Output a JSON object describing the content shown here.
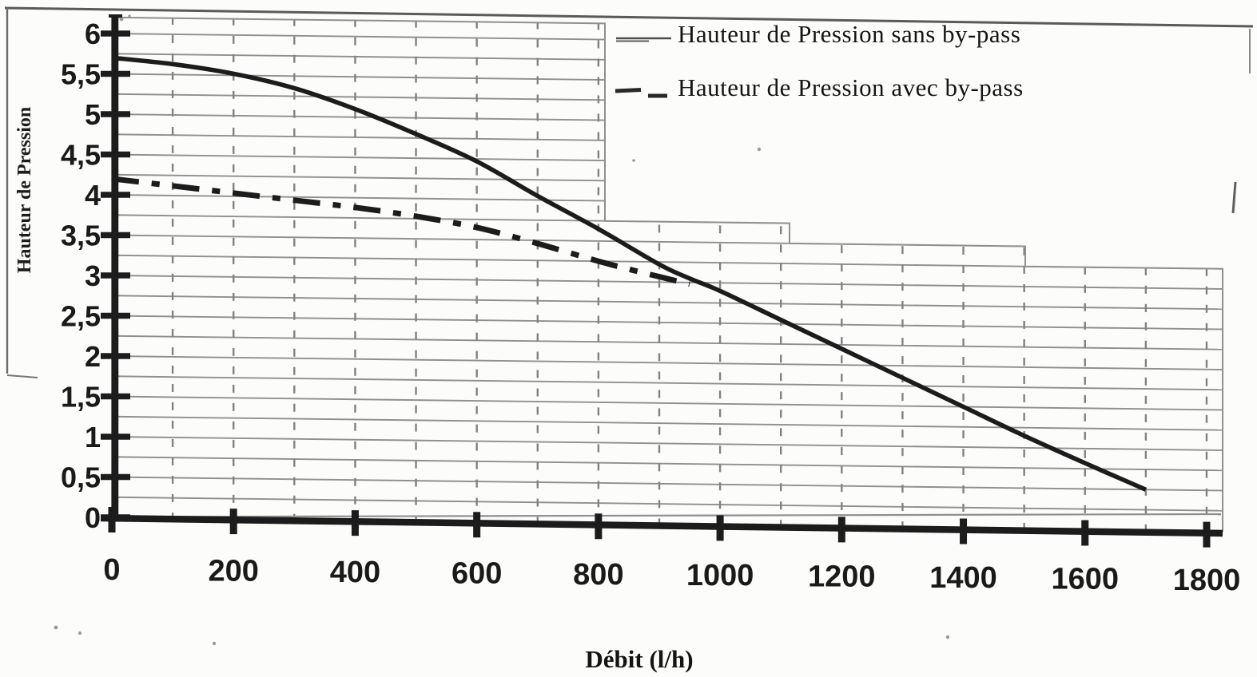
{
  "page": {
    "background": "#fcfcfb"
  },
  "chart_data": {
    "type": "line",
    "title": "",
    "xlabel": "Débit (l/h)",
    "ylabel": "Hauteur de Pression",
    "xlim": [
      0,
      1800
    ],
    "ylim": [
      0,
      6
    ],
    "x_ticks": {
      "values": [
        0,
        200,
        400,
        600,
        800,
        1000,
        1200,
        1400,
        1600,
        1800
      ],
      "labels": [
        "0",
        "200",
        "400",
        "600",
        "800",
        "1000",
        "1200",
        "1400",
        "1600",
        "1800"
      ]
    },
    "y_ticks": {
      "values": [
        0,
        0.5,
        1,
        1.5,
        2,
        2.5,
        3,
        3.5,
        4,
        4.5,
        5,
        5.5,
        6
      ],
      "labels": [
        "0",
        "0,5",
        "1",
        "1,5",
        "2",
        "2,5",
        "3",
        "3,5",
        "4",
        "4,5",
        "5",
        "5,5",
        "6"
      ]
    },
    "grid": {
      "x_step": 100,
      "y_step": 0.25,
      "vertical_style": "dashed",
      "horizontal_style": "solid",
      "color": "#8f8f8f"
    },
    "legend": {
      "position": "top-right",
      "entries": [
        {
          "label": "Hauteur de Pression sans by-pass",
          "line_style": "solid"
        },
        {
          "label": "Hauteur de Pression avec by-pass",
          "line_style": "dash-dot"
        }
      ]
    },
    "series": [
      {
        "name": "Hauteur de Pression sans by-pass",
        "line_style": "solid",
        "points": [
          [
            0,
            5.7
          ],
          [
            100,
            5.63
          ],
          [
            200,
            5.52
          ],
          [
            300,
            5.35
          ],
          [
            400,
            5.1
          ],
          [
            500,
            4.8
          ],
          [
            600,
            4.47
          ],
          [
            700,
            4.05
          ],
          [
            800,
            3.65
          ],
          [
            900,
            3.22
          ],
          [
            950,
            3.05
          ],
          [
            1000,
            2.9
          ],
          [
            1100,
            2.55
          ],
          [
            1200,
            2.2
          ],
          [
            1300,
            1.85
          ],
          [
            1400,
            1.5
          ],
          [
            1500,
            1.15
          ],
          [
            1600,
            0.82
          ],
          [
            1700,
            0.5
          ]
        ]
      },
      {
        "name": "Hauteur de Pression avec by-pass",
        "line_style": "dash-dot",
        "points": [
          [
            0,
            4.2
          ],
          [
            100,
            4.12
          ],
          [
            200,
            4.04
          ],
          [
            300,
            3.96
          ],
          [
            400,
            3.88
          ],
          [
            500,
            3.78
          ],
          [
            600,
            3.65
          ],
          [
            700,
            3.46
          ],
          [
            800,
            3.25
          ],
          [
            870,
            3.12
          ],
          [
            950,
            2.98
          ]
        ]
      }
    ],
    "ink_color": "#1c1c1c"
  }
}
